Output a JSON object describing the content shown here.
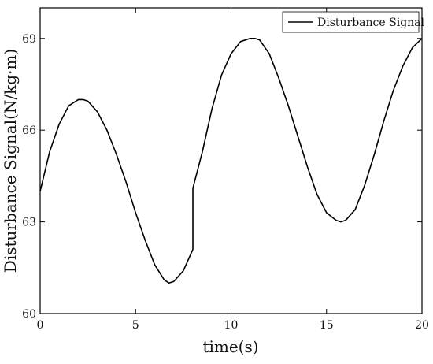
{
  "chart_data": {
    "type": "line",
    "title": "",
    "xlabel": "time(s)",
    "ylabel": "Disturbance Signal(N/kg·m)",
    "xlim": [
      0,
      20
    ],
    "ylim": [
      60,
      70
    ],
    "xticks": [
      0,
      5,
      10,
      15,
      20
    ],
    "yticks": [
      60,
      63,
      66,
      69
    ],
    "grid": false,
    "legend_position": "top-right",
    "series": [
      {
        "name": "Disturbance Signal",
        "color": "#000000",
        "segments": [
          {
            "x": [
              0,
              0.5,
              1.0,
              1.5,
              2.0,
              2.25,
              2.5,
              3.0,
              3.5,
              4.0,
              4.5,
              5.0,
              5.5,
              6.0,
              6.5,
              6.75,
              7.0,
              7.5,
              8.0
            ],
            "y": [
              64.0,
              65.3,
              66.2,
              66.8,
              67.0,
              67.0,
              66.95,
              66.6,
              66.0,
              65.2,
              64.3,
              63.3,
              62.4,
              61.6,
              61.1,
              61.0,
              61.05,
              61.4,
              62.1
            ]
          },
          {
            "x": [
              8.0,
              8.5,
              9.0,
              9.5,
              10.0,
              10.5,
              11.0,
              11.25,
              11.5,
              12.0,
              12.5,
              13.0,
              13.5,
              14.0,
              14.5,
              15.0,
              15.5,
              15.75,
              16.0,
              16.5,
              17.0,
              17.5,
              18.0,
              18.5,
              19.0,
              19.5,
              20.0
            ],
            "y": [
              64.1,
              65.3,
              66.7,
              67.8,
              68.5,
              68.9,
              69.0,
              69.0,
              68.95,
              68.5,
              67.7,
              66.8,
              65.8,
              64.8,
              63.9,
              63.3,
              63.05,
              63.0,
              63.05,
              63.4,
              64.2,
              65.2,
              66.3,
              67.3,
              68.1,
              68.7,
              69.0
            ]
          }
        ]
      }
    ]
  }
}
